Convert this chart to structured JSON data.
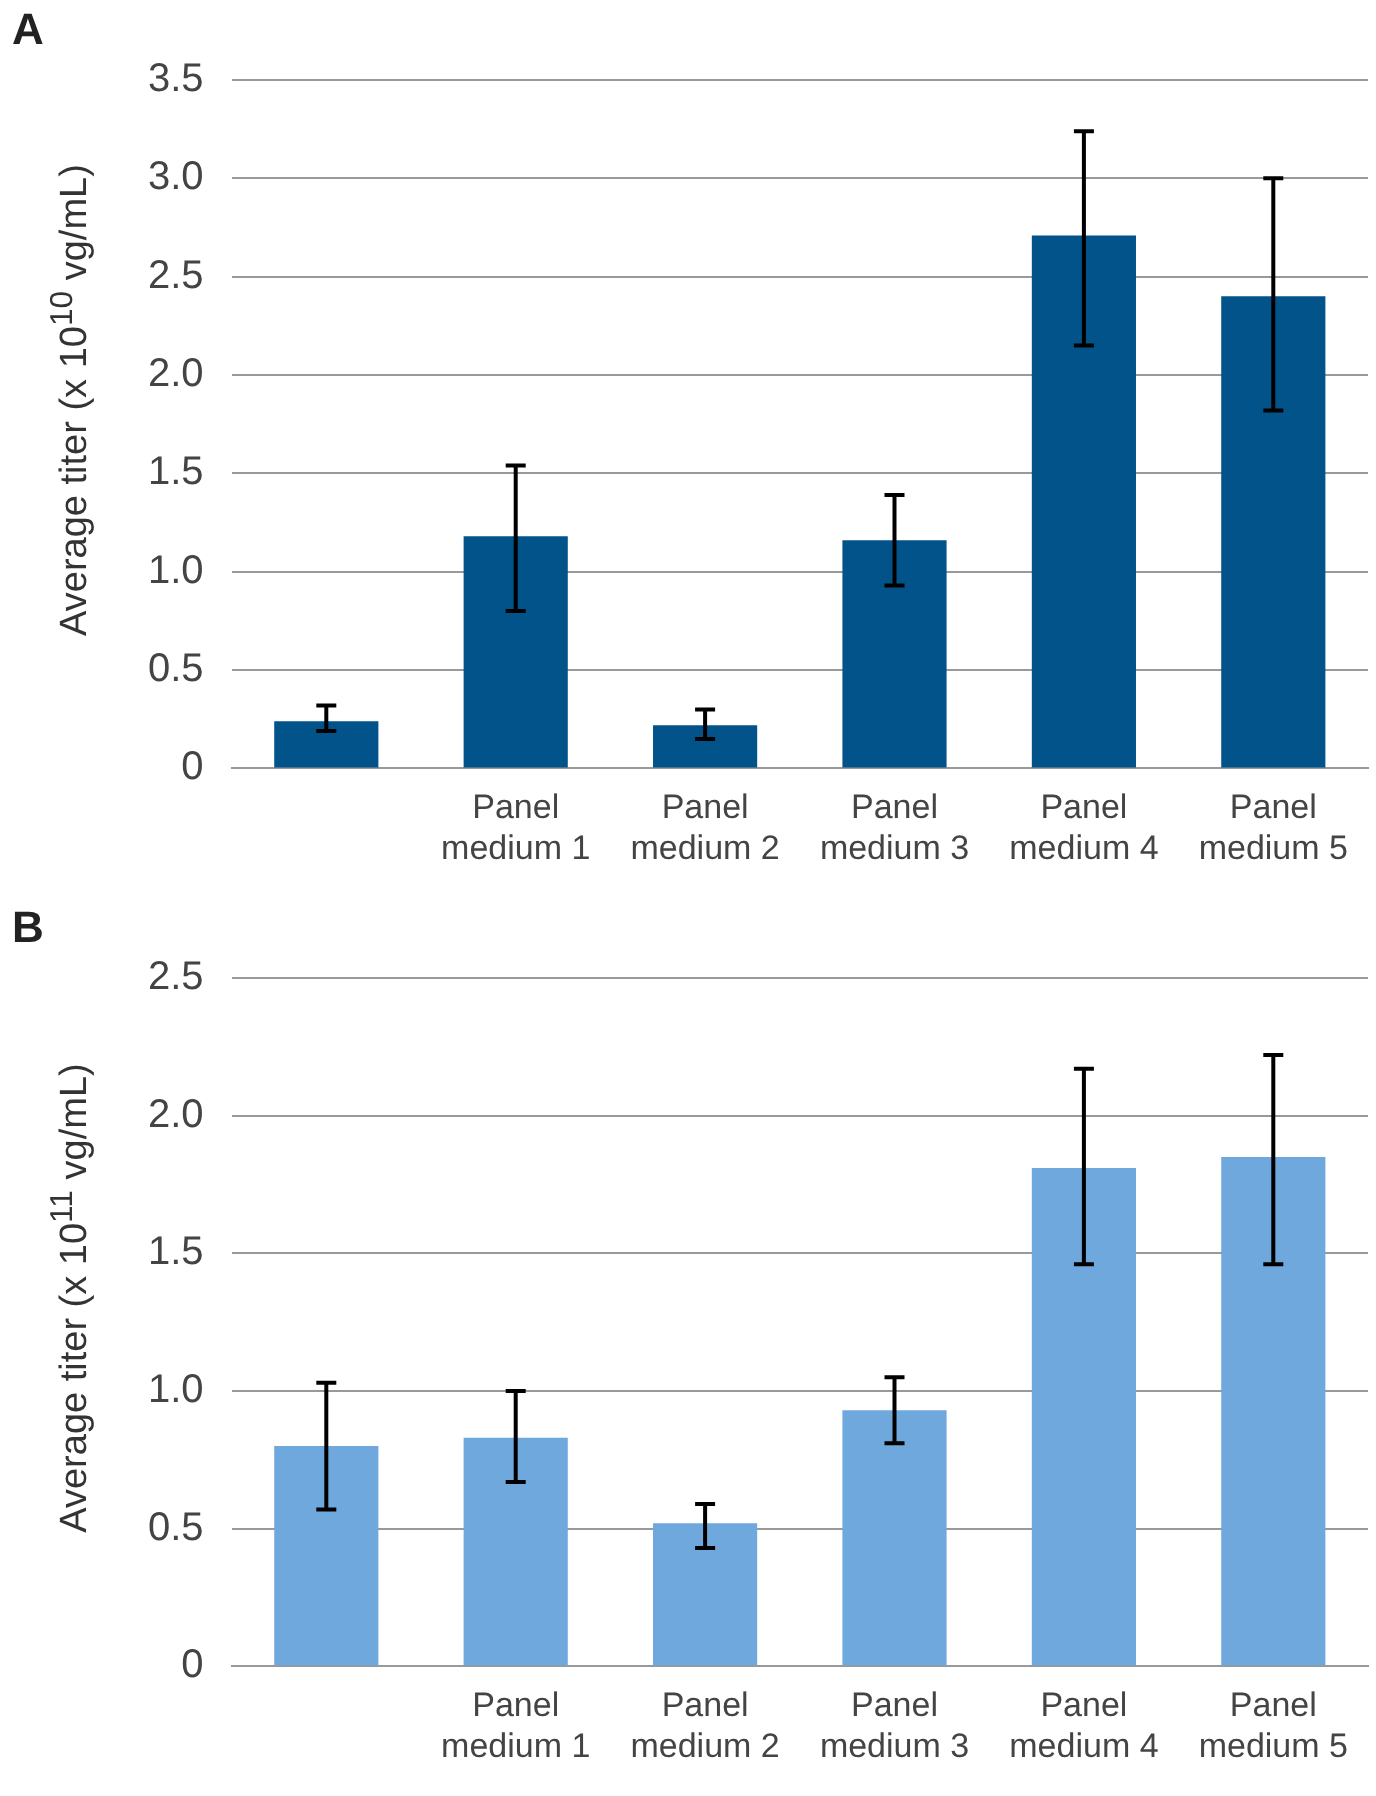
{
  "chart_data": [
    {
      "type": "bar",
      "title": "A",
      "ylabel": "Average titer (x 10$^{10}$ vg/mL)",
      "categories": [
        null,
        "Panel medium 1",
        "Panel medium 2",
        "Panel medium 3",
        "Panel medium 4",
        "Panel medium 5"
      ],
      "series": [
        {
          "color": "#02538a",
          "values": [
            0.24,
            1.18,
            0.22,
            1.16,
            2.71,
            2.4
          ],
          "errors": [
            [
              0.19,
              0.32
            ],
            [
              0.8,
              1.54
            ],
            [
              0.15,
              0.3
            ],
            [
              0.93,
              1.39
            ],
            [
              2.15,
              3.24
            ],
            [
              1.82,
              3.0
            ]
          ]
        }
      ],
      "ylim": [
        0,
        3.5
      ],
      "yticks": [
        0,
        0.5,
        {
          "value": 1,
          "label": "1.0"
        },
        1.5,
        {
          "value": 2,
          "label": "2.0"
        },
        2.5,
        {
          "value": 3,
          "label": "3.0"
        },
        3.5
      ],
      "grid": "y",
      "legend": false
    },
    {
      "type": "bar",
      "title": "B",
      "ylabel": "Average titer (x 10$^{11}$ vg/mL)",
      "categories": [
        null,
        "Panel medium 1",
        "Panel medium 2",
        "Panel medium 3",
        "Panel medium 4",
        "Panel medium 5"
      ],
      "series": [
        {
          "color": "#6fa8dc",
          "values": [
            0.8,
            0.83,
            0.52,
            0.93,
            1.81,
            1.85
          ],
          "errors": [
            [
              0.57,
              1.03
            ],
            [
              0.67,
              1.0
            ],
            [
              0.43,
              0.59
            ],
            [
              0.81,
              1.05
            ],
            [
              1.46,
              2.17
            ],
            [
              1.46,
              2.22
            ]
          ]
        }
      ],
      "ylim": [
        0,
        2.5
      ],
      "yticks": [
        0,
        0.5,
        {
          "value": 1,
          "label": "1.0"
        },
        1.5,
        {
          "value": 2,
          "label": "2.0"
        },
        2.5
      ],
      "grid": "y",
      "legend": false
    }
  ]
}
